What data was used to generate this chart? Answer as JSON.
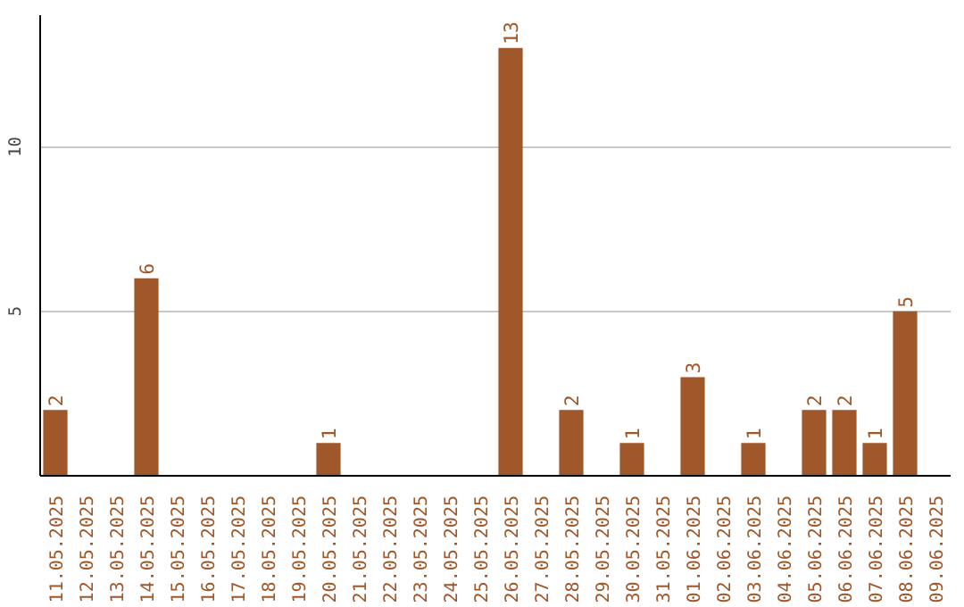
{
  "chart_data": {
    "type": "bar",
    "color": "#a0582a",
    "categories": [
      "11.05.2025",
      "12.05.2025",
      "13.05.2025",
      "14.05.2025",
      "15.05.2025",
      "16.05.2025",
      "17.05.2025",
      "18.05.2025",
      "19.05.2025",
      "20.05.2025",
      "21.05.2025",
      "22.05.2025",
      "23.05.2025",
      "24.05.2025",
      "25.05.2025",
      "26.05.2025",
      "27.05.2025",
      "28.05.2025",
      "29.05.2025",
      "30.05.2025",
      "31.05.2025",
      "01.06.2025",
      "02.06.2025",
      "03.06.2025",
      "04.06.2025",
      "05.06.2025",
      "06.06.2025",
      "07.06.2025",
      "08.06.2025",
      "09.06.2025"
    ],
    "values": [
      2,
      0,
      0,
      6,
      0,
      0,
      0,
      0,
      0,
      1,
      0,
      0,
      0,
      0,
      0,
      13,
      0,
      2,
      0,
      1,
      0,
      3,
      0,
      1,
      0,
      2,
      2,
      1,
      5,
      0
    ],
    "value_labels": [
      "2",
      null,
      null,
      "6",
      null,
      null,
      null,
      null,
      null,
      "1",
      null,
      null,
      null,
      null,
      null,
      "13",
      null,
      "2",
      null,
      "1",
      null,
      "3",
      null,
      "1",
      null,
      "2",
      "2",
      "1",
      "5",
      null
    ],
    "ylim": [
      0,
      14
    ],
    "yticks": [
      5,
      10
    ],
    "grid": "y"
  }
}
